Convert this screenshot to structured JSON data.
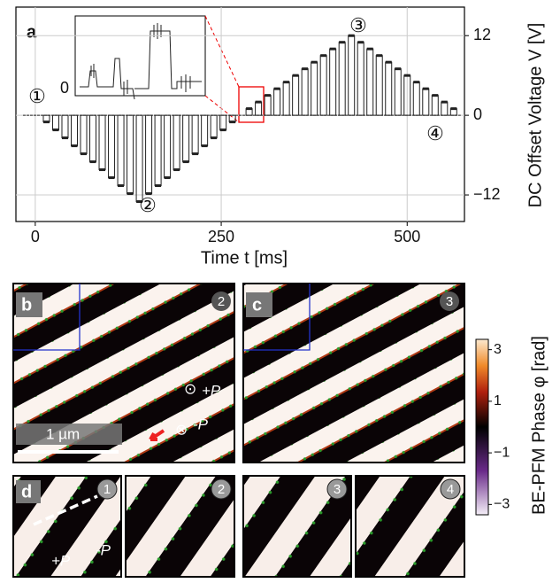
{
  "chart_data": [
    {
      "type": "step",
      "label": "a",
      "xlabel": "Time t [ms]",
      "ylabel": "DC Offset Voltage V [V]",
      "x": [
        15,
        27.5,
        40,
        52.5,
        65,
        77.5,
        90,
        102.5,
        115,
        127.5,
        140,
        152.5,
        165,
        177.5,
        190,
        202.5,
        215,
        227.5,
        240,
        252.5,
        265,
        287.5,
        300,
        312.5,
        325,
        337.5,
        350,
        362.5,
        375,
        387.5,
        400,
        412.5,
        425,
        437.5,
        450,
        462.5,
        475,
        487.5,
        500,
        512.5,
        525,
        537.5,
        550,
        562.5
      ],
      "values": [
        -1,
        -2.2,
        -3.4,
        -4.6,
        -5.8,
        -7,
        -8.2,
        -9.4,
        -10.6,
        -11.8,
        -13,
        -11.8,
        -10.6,
        -9.4,
        -8.2,
        -7,
        -5.8,
        -4.6,
        -3.4,
        -2.2,
        -1,
        1,
        2,
        3,
        4,
        5,
        6,
        7,
        8,
        9,
        10,
        11,
        12,
        11,
        10,
        9,
        8,
        7,
        6,
        5,
        4,
        3,
        2,
        1
      ],
      "xlim": [
        -26,
        577
      ],
      "xticks": [
        0,
        250,
        500
      ],
      "y2lim": [
        -16,
        16.3
      ],
      "y2ticks": [
        {
          "value": -12,
          "label": "−12"
        },
        0,
        12
      ],
      "grid": true,
      "color": "#222222",
      "annotations": [
        "①",
        "②",
        "③",
        "④"
      ],
      "inset_label": "0"
    },
    {
      "type": "colorbar",
      "ylabel": "BE-PFM Phase φ [rad]",
      "ylim": [
        -3.4,
        3.4
      ],
      "yticks": [
        {
          "value": -3,
          "label": "−3"
        },
        {
          "value": -1,
          "label": "−1"
        },
        1,
        3
      ]
    }
  ],
  "panels": {
    "b": {
      "label": "b",
      "badge": "2",
      "annotations": [
        "⊙",
        "+P",
        "⊗",
        "-P",
        "1 µm"
      ]
    },
    "c": {
      "label": "c",
      "badge": "3"
    },
    "d": {
      "label": "d",
      "badges": [
        "1",
        "2",
        "3",
        "4"
      ],
      "annotations": [
        "+P",
        "-P"
      ]
    }
  }
}
